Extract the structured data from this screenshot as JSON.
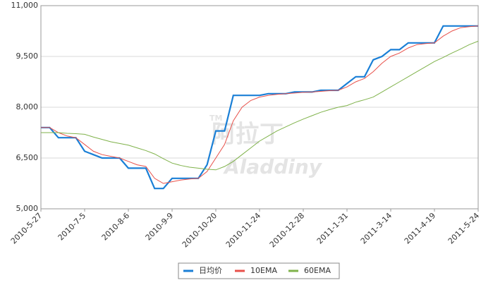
{
  "chart_data": {
    "type": "line",
    "watermark": "阿拉丁",
    "watermark_sub": "Aladdiny",
    "watermark_mark": "TM",
    "categories": [
      "2010-5-27",
      null,
      null,
      null,
      null,
      "2010-7-5",
      null,
      null,
      null,
      null,
      "2010-8-6",
      null,
      null,
      null,
      null,
      "2010-9-9",
      null,
      null,
      null,
      null,
      "2010-10-20",
      null,
      null,
      null,
      null,
      "2010-11-24",
      null,
      null,
      null,
      null,
      "2010-12-28",
      null,
      null,
      null,
      null,
      "2011-1-31",
      null,
      null,
      null,
      null,
      "2011-3-14",
      null,
      null,
      null,
      null,
      "2011-4-19",
      null,
      null,
      null,
      null,
      "2011-5-24"
    ],
    "series": [
      {
        "name": "日均价",
        "color": "#1a7fd6",
        "width": 2.2,
        "values": [
          7400,
          7400,
          7100,
          7100,
          7100,
          6700,
          6600,
          6500,
          6500,
          6500,
          6200,
          6200,
          6200,
          5600,
          5600,
          5900,
          5900,
          5900,
          5900,
          6300,
          7300,
          7300,
          8350,
          8350,
          8350,
          8350,
          8400,
          8400,
          8400,
          8450,
          8450,
          8450,
          8500,
          8500,
          8500,
          8700,
          8900,
          8900,
          9400,
          9500,
          9700,
          9700,
          9900,
          9900,
          9900,
          9900,
          10400,
          10400,
          10400,
          10400,
          10400
        ]
      },
      {
        "name": "10EMA",
        "color": "#e8504a",
        "width": 1,
        "values": [
          7400,
          7400,
          7250,
          7150,
          7100,
          6900,
          6700,
          6600,
          6550,
          6500,
          6400,
          6300,
          6250,
          5900,
          5750,
          5800,
          5850,
          5880,
          5900,
          6100,
          6500,
          6900,
          7600,
          8000,
          8200,
          8300,
          8350,
          8380,
          8400,
          8420,
          8440,
          8450,
          8470,
          8490,
          8500,
          8600,
          8750,
          8850,
          9050,
          9300,
          9500,
          9600,
          9750,
          9850,
          9880,
          9900,
          10100,
          10250,
          10350,
          10380,
          10400
        ]
      },
      {
        "name": "60EMA",
        "color": "#7fb24a",
        "width": 1,
        "values": [
          7250,
          7250,
          7250,
          7230,
          7220,
          7200,
          7120,
          7050,
          6980,
          6930,
          6880,
          6800,
          6720,
          6620,
          6480,
          6350,
          6280,
          6230,
          6200,
          6170,
          6150,
          6250,
          6400,
          6600,
          6800,
          7000,
          7150,
          7300,
          7420,
          7540,
          7650,
          7750,
          7850,
          7930,
          8000,
          8050,
          8150,
          8220,
          8300,
          8450,
          8600,
          8750,
          8900,
          9050,
          9200,
          9350,
          9470,
          9600,
          9720,
          9850,
          9950
        ]
      }
    ],
    "ylim": [
      5000,
      11000
    ],
    "yticks": [
      {
        "value": 5000,
        "label": "5,000"
      },
      {
        "value": 6500,
        "label": "6,500"
      },
      {
        "value": 8000,
        "label": "8,000"
      },
      {
        "value": 9500,
        "label": "9,500"
      },
      {
        "value": 11000,
        "label": "11,000"
      }
    ],
    "grid": true,
    "legend": "bottom"
  }
}
